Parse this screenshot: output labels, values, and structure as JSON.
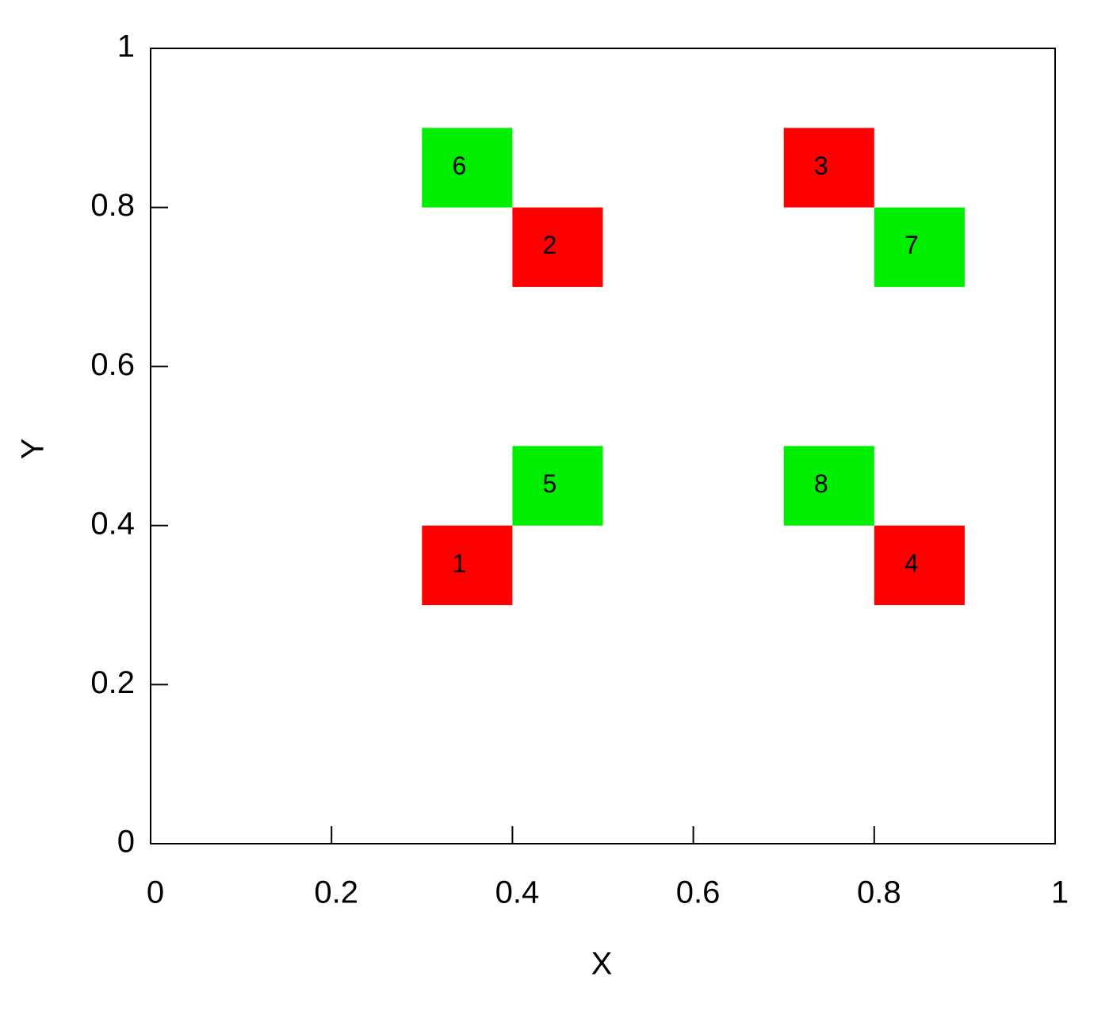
{
  "chart_data": {
    "type": "rect",
    "xlabel": "X",
    "ylabel": "Y",
    "xlim": [
      0,
      1
    ],
    "ylim": [
      0,
      1
    ],
    "xticks": [
      0,
      0.2,
      0.4,
      0.6,
      0.8,
      1
    ],
    "yticks": [
      0,
      0.2,
      0.4,
      0.6,
      0.8,
      1
    ],
    "rects": [
      {
        "label": "1",
        "x": [
          0.3,
          0.4
        ],
        "y": [
          0.3,
          0.4
        ],
        "color": "#ff0000",
        "label_color": "#550000"
      },
      {
        "label": "2",
        "x": [
          0.4,
          0.5
        ],
        "y": [
          0.7,
          0.8
        ],
        "color": "#ff0000",
        "label_color": "#550000"
      },
      {
        "label": "3",
        "x": [
          0.7,
          0.8
        ],
        "y": [
          0.8,
          0.9
        ],
        "color": "#ff0000",
        "label_color": "#550000"
      },
      {
        "label": "4",
        "x": [
          0.8,
          0.9
        ],
        "y": [
          0.3,
          0.4
        ],
        "color": "#ff0000",
        "label_color": "#550000"
      },
      {
        "label": "5",
        "x": [
          0.4,
          0.5
        ],
        "y": [
          0.4,
          0.5
        ],
        "color": "#00ee00",
        "label_color": "#2a6fb0"
      },
      {
        "label": "6",
        "x": [
          0.3,
          0.4
        ],
        "y": [
          0.8,
          0.9
        ],
        "color": "#00ee00",
        "label_color": "#2a6fb0"
      },
      {
        "label": "7",
        "x": [
          0.8,
          0.9
        ],
        "y": [
          0.7,
          0.8
        ],
        "color": "#00ee00",
        "label_color": "#2a6fb0"
      },
      {
        "label": "8",
        "x": [
          0.7,
          0.8
        ],
        "y": [
          0.4,
          0.5
        ],
        "color": "#00ee00",
        "label_color": "#2a6fb0"
      }
    ]
  }
}
